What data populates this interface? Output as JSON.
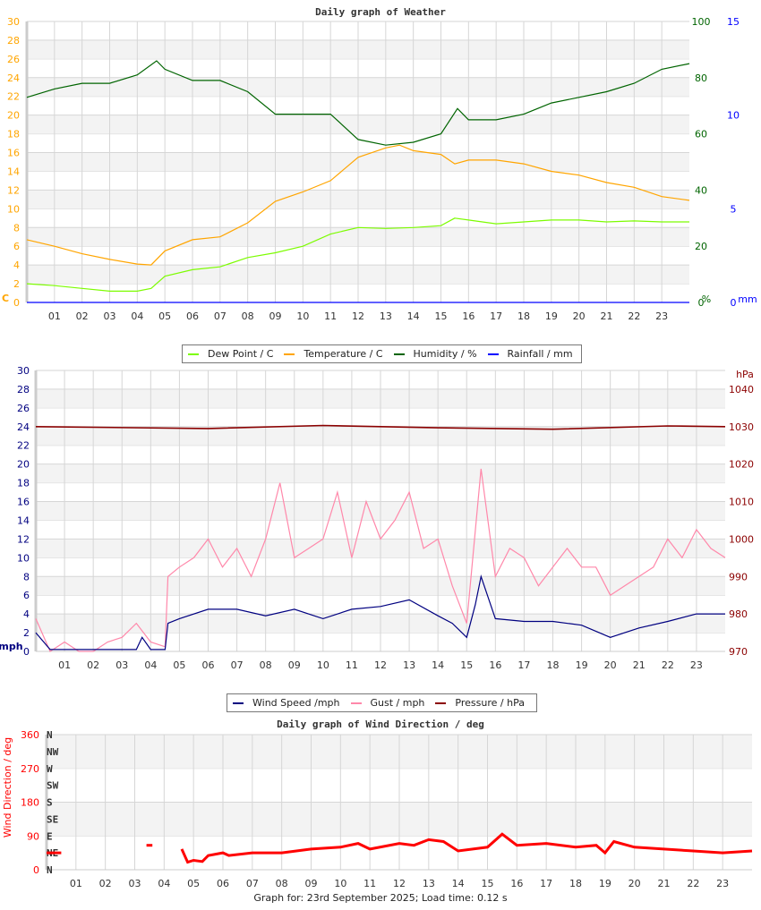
{
  "chart_data": [
    {
      "type": "line",
      "title": "Daily graph of Weather",
      "x_tick_labels": [
        "01",
        "02",
        "03",
        "04",
        "05",
        "06",
        "07",
        "08",
        "09",
        "10",
        "11",
        "12",
        "13",
        "14",
        "15",
        "16",
        "17",
        "18",
        "19",
        "20",
        "21",
        "22",
        "23"
      ],
      "xlim": [
        0,
        24
      ],
      "grid": true,
      "legend_position": "bottom",
      "axes": {
        "left": {
          "label": "C",
          "ylim": [
            0,
            30
          ],
          "ticks": [
            0,
            2,
            4,
            6,
            8,
            10,
            12,
            14,
            16,
            18,
            20,
            22,
            24,
            26,
            28,
            30
          ],
          "color": "#ffa500"
        },
        "right1": {
          "label": "%",
          "ylim": [
            0,
            100
          ],
          "ticks": [
            0,
            20,
            40,
            60,
            80,
            100
          ],
          "color": "#006400"
        },
        "right2": {
          "label": "mm",
          "ylim": [
            0,
            15
          ],
          "ticks": [
            0,
            5,
            10,
            15
          ],
          "color": "#0000ff"
        }
      },
      "series": [
        {
          "name": "Dew Point / C",
          "axis": "left",
          "color": "#7cfc00",
          "x": [
            0,
            1,
            2,
            3,
            4,
            4.5,
            5,
            6,
            7,
            8,
            9,
            10,
            11,
            12,
            13,
            14,
            15,
            15.5,
            16,
            17,
            18,
            19,
            20,
            21,
            22,
            23,
            24
          ],
          "y": [
            2.0,
            1.8,
            1.5,
            1.2,
            1.2,
            1.5,
            2.8,
            3.5,
            3.8,
            4.8,
            5.3,
            6.0,
            7.3,
            8.0,
            7.9,
            8.0,
            8.2,
            9.0,
            8.8,
            8.4,
            8.6,
            8.8,
            8.8,
            8.6,
            8.7,
            8.6,
            8.6
          ]
        },
        {
          "name": "Temperature / C",
          "axis": "left",
          "color": "#ffa500",
          "x": [
            0,
            1,
            2,
            3,
            4,
            4.5,
            5,
            6,
            7,
            8,
            9,
            10,
            11,
            12,
            13,
            13.5,
            14,
            15,
            15.5,
            16,
            17,
            18,
            19,
            20,
            21,
            22,
            23,
            24
          ],
          "y": [
            6.7,
            6.0,
            5.2,
            4.6,
            4.1,
            4.0,
            5.5,
            6.7,
            7.0,
            8.5,
            10.8,
            11.8,
            13.0,
            15.5,
            16.5,
            16.8,
            16.2,
            15.8,
            14.8,
            15.2,
            15.2,
            14.8,
            14.0,
            13.6,
            12.8,
            12.3,
            11.3,
            10.9
          ]
        },
        {
          "name": "Humidity / %",
          "axis": "right1",
          "color": "#006400",
          "x": [
            0,
            1,
            2,
            3,
            4,
            4.7,
            5,
            6,
            7,
            8,
            9,
            10,
            11,
            12,
            13,
            14,
            15,
            15.6,
            16,
            17,
            18,
            19,
            20,
            21,
            22,
            23,
            24
          ],
          "y": [
            73,
            76,
            78,
            78,
            81,
            86,
            83,
            79,
            79,
            75,
            67,
            67,
            67,
            58,
            56,
            57,
            60,
            69,
            65,
            65,
            67,
            71,
            73,
            75,
            78,
            83,
            85
          ]
        },
        {
          "name": "Rainfall / mm",
          "axis": "right2",
          "color": "#0000ff",
          "x": [
            0,
            24
          ],
          "y": [
            0,
            0
          ]
        }
      ]
    },
    {
      "type": "line",
      "title": "",
      "x_tick_labels": [
        "01",
        "02",
        "03",
        "04",
        "05",
        "06",
        "07",
        "08",
        "09",
        "10",
        "11",
        "12",
        "13",
        "14",
        "15",
        "16",
        "17",
        "18",
        "19",
        "20",
        "21",
        "22",
        "23"
      ],
      "xlim": [
        0,
        24
      ],
      "grid": true,
      "legend_position": "bottom",
      "axes": {
        "left": {
          "label": "mph",
          "ylim": [
            0,
            30
          ],
          "ticks": [
            0,
            2,
            4,
            6,
            8,
            10,
            12,
            14,
            16,
            18,
            20,
            22,
            24,
            26,
            28,
            30
          ],
          "color": "#000080"
        },
        "right": {
          "label": "hPa",
          "ylim": [
            970,
            1045
          ],
          "ticks": [
            970,
            980,
            990,
            1000,
            1010,
            1020,
            1030,
            1040
          ],
          "color": "#8b0000"
        }
      },
      "series": [
        {
          "name": "Wind Speed /mph",
          "axis": "left",
          "color": "#000080",
          "x": [
            0,
            0.5,
            3.5,
            3.7,
            4,
            4.5,
            4.6,
            5,
            6,
            7,
            8,
            9,
            10,
            11,
            12,
            13,
            14,
            14.5,
            15,
            15.3,
            15.5,
            16,
            17,
            18,
            19,
            20,
            21,
            22,
            23,
            24
          ],
          "y": [
            2,
            0.2,
            0.2,
            1.5,
            0.2,
            0.2,
            3,
            3.5,
            4.5,
            4.5,
            3.8,
            4.5,
            3.5,
            4.5,
            4.8,
            5.5,
            3.8,
            3,
            1.5,
            5,
            8,
            3.5,
            3.2,
            3.2,
            2.8,
            1.5,
            2.5,
            3.2,
            4,
            4
          ]
        },
        {
          "name": "Gust / mph",
          "axis": "left",
          "color": "#ff88aa",
          "x": [
            0,
            0.5,
            1,
            1.5,
            2,
            2.5,
            3,
            3.5,
            4,
            4.5,
            4.6,
            5,
            5.5,
            6,
            6.5,
            7,
            7.5,
            8,
            8.5,
            9,
            9.5,
            10,
            10.5,
            11,
            11.5,
            12,
            12.5,
            13,
            13.5,
            14,
            14.5,
            15,
            15.5,
            16,
            16.5,
            17,
            17.5,
            18,
            18.5,
            19,
            19.5,
            20,
            20.5,
            21,
            21.5,
            22,
            22.5,
            23,
            23.5,
            24
          ],
          "y": [
            3.5,
            0,
            1,
            0,
            0,
            1,
            1.5,
            3,
            1,
            0.5,
            8,
            9,
            10,
            12,
            9,
            11,
            8,
            12,
            18,
            10,
            11,
            12,
            17,
            10,
            16,
            12,
            14,
            17,
            11,
            12,
            7,
            3,
            19.5,
            8,
            11,
            10,
            7,
            9,
            11,
            9,
            9,
            6,
            7,
            8,
            9,
            12,
            10,
            13,
            11,
            10
          ]
        },
        {
          "name": "Pressure / hPa",
          "axis": "right",
          "color": "#8b0000",
          "x": [
            0,
            6,
            10,
            14,
            18,
            22,
            24
          ],
          "y": [
            1030,
            1029.5,
            1030.3,
            1029.7,
            1029.3,
            1030.2,
            1030
          ]
        }
      ]
    },
    {
      "type": "scatter",
      "title": "Daily graph of Wind Direction / deg",
      "ylabel": "Wind Direction / deg",
      "x_tick_labels": [
        "01",
        "02",
        "03",
        "04",
        "05",
        "06",
        "07",
        "08",
        "09",
        "10",
        "11",
        "12",
        "13",
        "14",
        "15",
        "16",
        "17",
        "18",
        "19",
        "20",
        "21",
        "22",
        "23"
      ],
      "xlim": [
        0,
        24
      ],
      "ylim": [
        0,
        360
      ],
      "y_ticks": [
        0,
        90,
        180,
        270,
        360
      ],
      "compass_labels": [
        "N",
        "NE",
        "E",
        "SE",
        "S",
        "SW",
        "W",
        "NW",
        "N"
      ],
      "grid": true,
      "color": "#ff0000",
      "segments": [
        {
          "x": [
            0,
            0.5
          ],
          "y": [
            45,
            45
          ]
        },
        {
          "x": [
            3.4,
            3.6
          ],
          "y": [
            65,
            65
          ]
        },
        {
          "x": [
            4.6,
            4.8,
            5,
            5.3,
            5.5,
            6,
            6.2,
            7,
            8,
            9,
            10,
            10.6,
            11,
            12,
            12.5,
            13,
            13.5,
            14,
            14.5,
            15,
            15.5,
            16,
            17,
            18,
            18.7,
            19,
            19.3,
            20,
            21,
            22,
            23,
            24
          ],
          "y": [
            55,
            20,
            25,
            22,
            38,
            45,
            38,
            45,
            45,
            55,
            60,
            70,
            55,
            70,
            65,
            80,
            75,
            50,
            55,
            60,
            95,
            65,
            70,
            60,
            65,
            45,
            75,
            60,
            55,
            50,
            45,
            50
          ]
        }
      ]
    }
  ],
  "footer": "Graph for: 23rd September 2025; Load time: 0.12 s"
}
